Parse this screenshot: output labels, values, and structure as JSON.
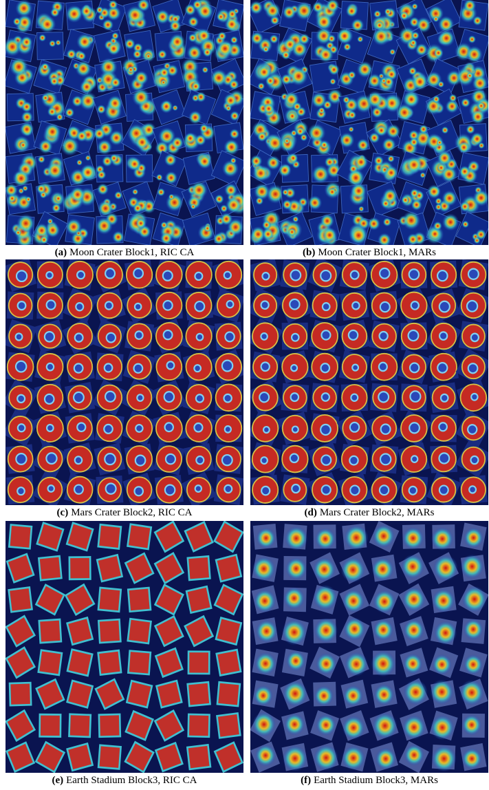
{
  "panels": [
    {
      "label": "(a)",
      "caption": "Moon Crater Block1, RIC CA"
    },
    {
      "label": "(b)",
      "caption": "Moon Crater Block1, MARs"
    },
    {
      "label": "(c)",
      "caption": "Mars Crater Block2, RIC CA"
    },
    {
      "label": "(d)",
      "caption": "Mars Crater Block2, MARs"
    },
    {
      "label": "(e)",
      "caption": "Earth Stadium Block3, RIC CA"
    },
    {
      "label": "(f)",
      "caption": "Earth Stadium Block3, MARs"
    }
  ]
}
